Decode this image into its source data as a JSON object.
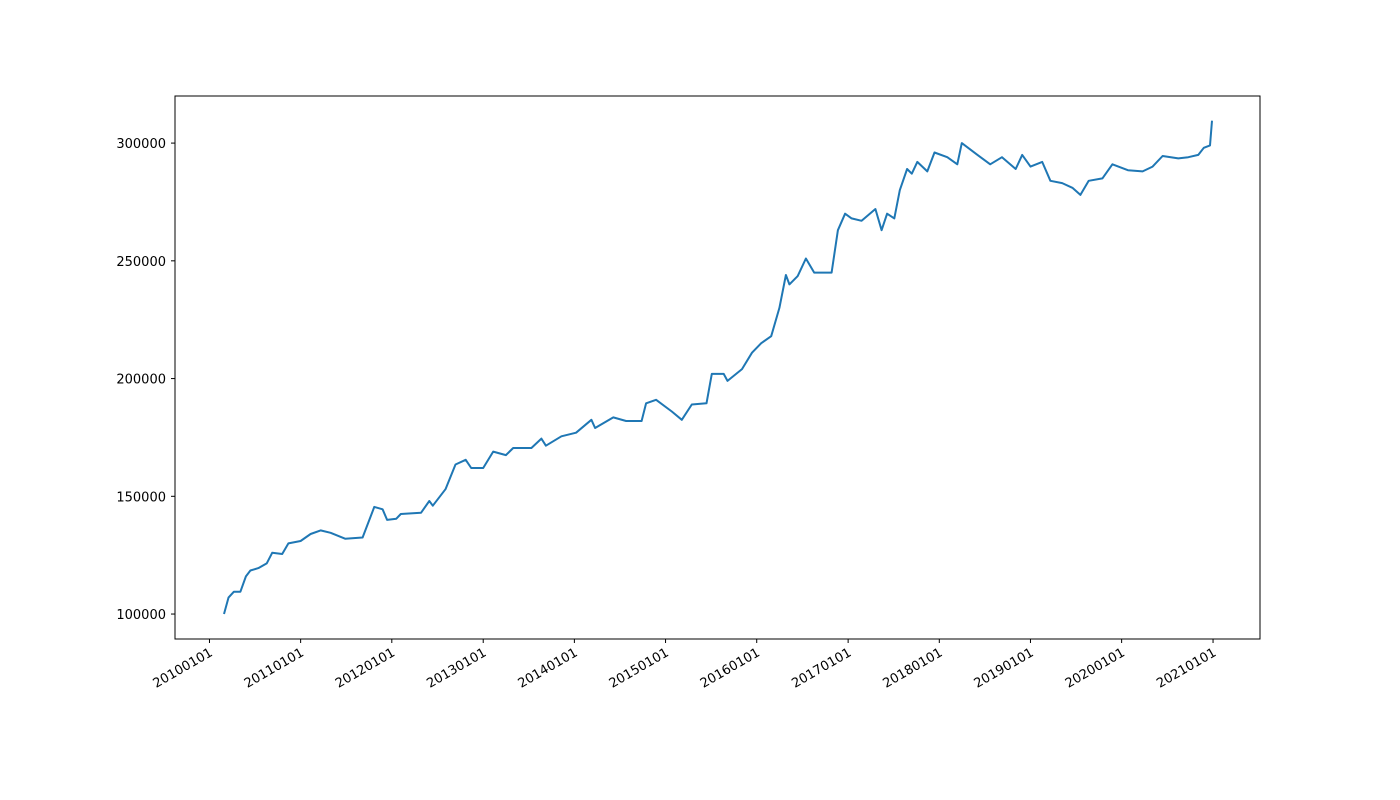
{
  "chart_data": {
    "type": "line",
    "x": [
      "20100228",
      "20100318",
      "20100409",
      "20100505",
      "20100527",
      "20100614",
      "20100716",
      "20100818",
      "20100909",
      "20101019",
      "20101113",
      "20110101",
      "20110210",
      "20110322",
      "20110501",
      "20110628",
      "20110906",
      "20111023",
      "20111125",
      "20111213",
      "20120119",
      "20120206",
      "20120427",
      "20120530",
      "20120613",
      "20120803",
      "20120912",
      "20121023",
      "20121114",
      "20130101",
      "20130210",
      "20130402",
      "20130501",
      "20130713",
      "20130822",
      "20130909",
      "20131110",
      "20140108",
      "20140310",
      "20140325",
      "20140606",
      "20140727",
      "20140927",
      "20141015",
      "20141124",
      "20150126",
      "20150307",
      "20150416",
      "20150614",
      "20150705",
      "20150822",
      "20150906",
      "20151103",
      "20151213",
      "20160119",
      "20160228",
      "20160401",
      "20160427",
      "20160511",
      "20160613",
      "20160716",
      "20160818",
      "20160916",
      "20161027",
      "20161121",
      "20161220",
      "20170115",
      "20170224",
      "20170420",
      "20170515",
      "20170606",
      "20170705",
      "20170727",
      "20170825",
      "20170913",
      "20171005",
      "20171114",
      "20171213",
      "20180202",
      "20180314",
      "20180401",
      "20180603",
      "20180724",
      "20180909",
      "20181103",
      "20181129",
      "20190101",
      "20190217",
      "20190322",
      "20190508",
      "20190618",
      "20190720",
      "20190822",
      "20191016",
      "20191125",
      "20200126",
      "20200325",
      "20200504",
      "20200613",
      "20200815",
      "20200924",
      "20201103",
      "20201125",
      "20201220",
      "20201228"
    ],
    "series": [
      {
        "color": "#1f77b4",
        "values": [
          100000,
          107000,
          109500,
          109500,
          116000,
          118500,
          119500,
          121500,
          126000,
          125500,
          130000,
          131000,
          134000,
          135500,
          134500,
          132000,
          132500,
          145500,
          144500,
          140000,
          140500,
          142500,
          143000,
          148000,
          146000,
          153000,
          163500,
          165500,
          162000,
          162000,
          169000,
          167500,
          170500,
          170500,
          174500,
          171500,
          175500,
          177000,
          182500,
          179000,
          183500,
          182000,
          182000,
          189500,
          191000,
          186000,
          182500,
          189000,
          189500,
          202000,
          202000,
          199000,
          204000,
          211000,
          215000,
          218000,
          230000,
          244000,
          240000,
          243500,
          251000,
          245000,
          245000,
          245000,
          263000,
          270000,
          268000,
          267000,
          272000,
          263000,
          270000,
          268000,
          280000,
          289000,
          287000,
          292000,
          288000,
          296000,
          294000,
          291000,
          300000,
          295000,
          291000,
          294000,
          289000,
          295000,
          290000,
          292000,
          284000,
          283000,
          281000,
          278000,
          284000,
          285000,
          291000,
          288500,
          288000,
          290000,
          294500,
          293500,
          294000,
          295000,
          298000,
          299000,
          309500
        ]
      }
    ],
    "xlim": [
      "20090816",
      "20210708"
    ],
    "xticks": [
      "20100101",
      "20110101",
      "20120101",
      "20130101",
      "20140101",
      "20150101",
      "20160101",
      "20170101",
      "20180101",
      "20190101",
      "20200101",
      "20210101"
    ],
    "ylim": [
      89400,
      320000
    ],
    "yticks": [
      100000,
      150000,
      200000,
      250000,
      300000
    ]
  }
}
